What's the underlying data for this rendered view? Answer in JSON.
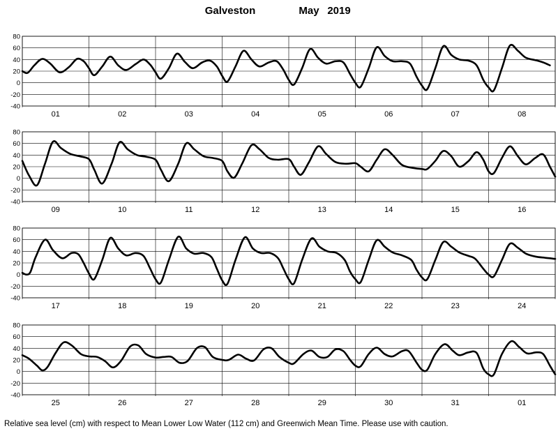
{
  "chart_data": {
    "type": "line",
    "title": "Galveston",
    "subtitle": "May",
    "year": "2019",
    "footnote": "Relative sea level (cm) with respect to Mean Lower Low Water (112 cm) and Greenwich Mean Time. Please use with caution.",
    "ylim": [
      -40,
      80
    ],
    "yticks": [
      80,
      60,
      40,
      20,
      0,
      -20,
      -40
    ],
    "grid": true,
    "line_color": "#000000",
    "panels": [
      {
        "days": [
          "01",
          "02",
          "03",
          "04",
          "05",
          "06",
          "07",
          "08"
        ],
        "points": [
          [
            0,
            20
          ],
          [
            0.08,
            17
          ],
          [
            0.18,
            30
          ],
          [
            0.3,
            41
          ],
          [
            0.42,
            33
          ],
          [
            0.56,
            18
          ],
          [
            0.7,
            27
          ],
          [
            0.82,
            41
          ],
          [
            0.92,
            37
          ],
          [
            1.0,
            25
          ],
          [
            1.08,
            13
          ],
          [
            1.2,
            28
          ],
          [
            1.32,
            45
          ],
          [
            1.44,
            30
          ],
          [
            1.56,
            22
          ],
          [
            1.7,
            32
          ],
          [
            1.82,
            40
          ],
          [
            1.92,
            31
          ],
          [
            2.0,
            18
          ],
          [
            2.08,
            7
          ],
          [
            2.2,
            25
          ],
          [
            2.32,
            50
          ],
          [
            2.44,
            36
          ],
          [
            2.56,
            25
          ],
          [
            2.7,
            35
          ],
          [
            2.82,
            38
          ],
          [
            2.92,
            28
          ],
          [
            3.0,
            12
          ],
          [
            3.08,
            2
          ],
          [
            3.2,
            28
          ],
          [
            3.32,
            55
          ],
          [
            3.44,
            40
          ],
          [
            3.56,
            28
          ],
          [
            3.7,
            35
          ],
          [
            3.82,
            37
          ],
          [
            3.92,
            22
          ],
          [
            4.0,
            5
          ],
          [
            4.08,
            -3
          ],
          [
            4.2,
            25
          ],
          [
            4.32,
            58
          ],
          [
            4.44,
            43
          ],
          [
            4.56,
            33
          ],
          [
            4.7,
            37
          ],
          [
            4.82,
            35
          ],
          [
            4.92,
            15
          ],
          [
            5.0,
            0
          ],
          [
            5.08,
            -7
          ],
          [
            5.2,
            25
          ],
          [
            5.32,
            61
          ],
          [
            5.44,
            46
          ],
          [
            5.56,
            37
          ],
          [
            5.7,
            37
          ],
          [
            5.82,
            33
          ],
          [
            5.92,
            10
          ],
          [
            6.0,
            -5
          ],
          [
            6.08,
            -11
          ],
          [
            6.2,
            25
          ],
          [
            6.32,
            63
          ],
          [
            6.44,
            48
          ],
          [
            6.56,
            40
          ],
          [
            6.7,
            38
          ],
          [
            6.82,
            30
          ],
          [
            6.92,
            5
          ],
          [
            7.0,
            -8
          ],
          [
            7.08,
            -13
          ],
          [
            7.2,
            25
          ],
          [
            7.32,
            64
          ],
          [
            7.44,
            55
          ],
          [
            7.56,
            43
          ],
          [
            7.7,
            39
          ],
          [
            7.82,
            35
          ],
          [
            7.92,
            30
          ]
        ]
      },
      {
        "days": [
          "09",
          "10",
          "11",
          "12",
          "13",
          "14",
          "15",
          "16"
        ],
        "points": [
          [
            0,
            30
          ],
          [
            0.1,
            5
          ],
          [
            0.22,
            -12
          ],
          [
            0.34,
            25
          ],
          [
            0.46,
            63
          ],
          [
            0.58,
            52
          ],
          [
            0.72,
            42
          ],
          [
            0.86,
            38
          ],
          [
            1.0,
            33
          ],
          [
            1.08,
            15
          ],
          [
            1.2,
            -9
          ],
          [
            1.34,
            25
          ],
          [
            1.46,
            62
          ],
          [
            1.58,
            50
          ],
          [
            1.72,
            40
          ],
          [
            1.86,
            37
          ],
          [
            2.0,
            32
          ],
          [
            2.08,
            15
          ],
          [
            2.2,
            -5
          ],
          [
            2.34,
            25
          ],
          [
            2.46,
            60
          ],
          [
            2.58,
            50
          ],
          [
            2.72,
            38
          ],
          [
            2.86,
            35
          ],
          [
            3.0,
            30
          ],
          [
            3.08,
            12
          ],
          [
            3.18,
            1
          ],
          [
            3.3,
            25
          ],
          [
            3.44,
            57
          ],
          [
            3.56,
            50
          ],
          [
            3.7,
            35
          ],
          [
            3.84,
            32
          ],
          [
            4.0,
            33
          ],
          [
            4.08,
            20
          ],
          [
            4.18,
            6
          ],
          [
            4.3,
            27
          ],
          [
            4.44,
            55
          ],
          [
            4.56,
            42
          ],
          [
            4.7,
            28
          ],
          [
            4.86,
            25
          ],
          [
            5.0,
            26
          ],
          [
            5.08,
            20
          ],
          [
            5.2,
            12
          ],
          [
            5.32,
            32
          ],
          [
            5.44,
            50
          ],
          [
            5.56,
            40
          ],
          [
            5.7,
            23
          ],
          [
            5.86,
            18
          ],
          [
            6.0,
            16
          ],
          [
            6.08,
            16
          ],
          [
            6.2,
            30
          ],
          [
            6.32,
            47
          ],
          [
            6.44,
            38
          ],
          [
            6.56,
            20
          ],
          [
            6.7,
            30
          ],
          [
            6.82,
            45
          ],
          [
            6.92,
            32
          ],
          [
            7.0,
            12
          ],
          [
            7.08,
            9
          ],
          [
            7.2,
            35
          ],
          [
            7.32,
            55
          ],
          [
            7.44,
            38
          ],
          [
            7.56,
            24
          ],
          [
            7.7,
            35
          ],
          [
            7.82,
            41
          ],
          [
            7.92,
            20
          ],
          [
            8.0,
            3
          ]
        ]
      },
      {
        "days": [
          "17",
          "18",
          "19",
          "20",
          "21",
          "22",
          "23",
          "24"
        ],
        "points": [
          [
            0,
            3
          ],
          [
            0.06,
            0
          ],
          [
            0.12,
            4
          ],
          [
            0.2,
            30
          ],
          [
            0.34,
            60
          ],
          [
            0.46,
            42
          ],
          [
            0.6,
            28
          ],
          [
            0.74,
            37
          ],
          [
            0.84,
            35
          ],
          [
            0.92,
            20
          ],
          [
            1.0,
            2
          ],
          [
            1.08,
            -8
          ],
          [
            1.2,
            25
          ],
          [
            1.32,
            63
          ],
          [
            1.44,
            45
          ],
          [
            1.56,
            33
          ],
          [
            1.7,
            37
          ],
          [
            1.82,
            32
          ],
          [
            1.92,
            10
          ],
          [
            2.0,
            -8
          ],
          [
            2.08,
            -14
          ],
          [
            2.2,
            25
          ],
          [
            2.34,
            65
          ],
          [
            2.46,
            45
          ],
          [
            2.58,
            36
          ],
          [
            2.72,
            37
          ],
          [
            2.84,
            30
          ],
          [
            2.92,
            10
          ],
          [
            3.0,
            -10
          ],
          [
            3.08,
            -16
          ],
          [
            3.2,
            25
          ],
          [
            3.34,
            64
          ],
          [
            3.46,
            45
          ],
          [
            3.58,
            37
          ],
          [
            3.72,
            37
          ],
          [
            3.84,
            28
          ],
          [
            3.92,
            10
          ],
          [
            4.0,
            -8
          ],
          [
            4.08,
            -15
          ],
          [
            4.2,
            25
          ],
          [
            4.34,
            62
          ],
          [
            4.46,
            48
          ],
          [
            4.58,
            40
          ],
          [
            4.72,
            37
          ],
          [
            4.84,
            25
          ],
          [
            4.92,
            5
          ],
          [
            5.0,
            -8
          ],
          [
            5.08,
            -13
          ],
          [
            5.2,
            25
          ],
          [
            5.32,
            59
          ],
          [
            5.44,
            48
          ],
          [
            5.56,
            38
          ],
          [
            5.7,
            33
          ],
          [
            5.84,
            25
          ],
          [
            5.92,
            8
          ],
          [
            6.0,
            -5
          ],
          [
            6.08,
            -8
          ],
          [
            6.2,
            25
          ],
          [
            6.32,
            56
          ],
          [
            6.44,
            48
          ],
          [
            6.56,
            38
          ],
          [
            6.7,
            32
          ],
          [
            6.8,
            27
          ],
          [
            6.92,
            10
          ],
          [
            7.0,
            0
          ],
          [
            7.08,
            -3
          ],
          [
            7.2,
            25
          ],
          [
            7.32,
            53
          ],
          [
            7.44,
            46
          ],
          [
            7.56,
            36
          ],
          [
            7.7,
            31
          ],
          [
            7.84,
            29
          ],
          [
            7.92,
            28
          ],
          [
            8.0,
            27
          ]
        ]
      },
      {
        "days": [
          "25",
          "26",
          "27",
          "28",
          "29",
          "30",
          "31",
          "01"
        ],
        "points": [
          [
            0,
            28
          ],
          [
            0.1,
            22
          ],
          [
            0.22,
            10
          ],
          [
            0.3,
            2
          ],
          [
            0.38,
            8
          ],
          [
            0.5,
            32
          ],
          [
            0.62,
            50
          ],
          [
            0.74,
            45
          ],
          [
            0.88,
            30
          ],
          [
            1.0,
            26
          ],
          [
            1.12,
            25
          ],
          [
            1.24,
            18
          ],
          [
            1.36,
            7
          ],
          [
            1.48,
            18
          ],
          [
            1.62,
            43
          ],
          [
            1.74,
            45
          ],
          [
            1.86,
            30
          ],
          [
            2.0,
            24
          ],
          [
            2.12,
            25
          ],
          [
            2.24,
            25
          ],
          [
            2.36,
            15
          ],
          [
            2.48,
            18
          ],
          [
            2.62,
            40
          ],
          [
            2.74,
            42
          ],
          [
            2.86,
            25
          ],
          [
            3.0,
            20
          ],
          [
            3.1,
            20
          ],
          [
            3.24,
            29
          ],
          [
            3.36,
            22
          ],
          [
            3.48,
            19
          ],
          [
            3.62,
            38
          ],
          [
            3.74,
            40
          ],
          [
            3.86,
            25
          ],
          [
            4.0,
            15
          ],
          [
            4.08,
            14
          ],
          [
            4.22,
            30
          ],
          [
            4.34,
            36
          ],
          [
            4.46,
            25
          ],
          [
            4.58,
            25
          ],
          [
            4.7,
            38
          ],
          [
            4.82,
            35
          ],
          [
            4.92,
            20
          ],
          [
            5.0,
            10
          ],
          [
            5.08,
            9
          ],
          [
            5.2,
            30
          ],
          [
            5.32,
            41
          ],
          [
            5.44,
            30
          ],
          [
            5.56,
            26
          ],
          [
            5.7,
            35
          ],
          [
            5.8,
            35
          ],
          [
            5.92,
            15
          ],
          [
            6.0,
            3
          ],
          [
            6.08,
            3
          ],
          [
            6.2,
            30
          ],
          [
            6.34,
            47
          ],
          [
            6.46,
            36
          ],
          [
            6.56,
            28
          ],
          [
            6.7,
            33
          ],
          [
            6.82,
            32
          ],
          [
            6.92,
            5
          ],
          [
            7.0,
            -5
          ],
          [
            7.08,
            -5
          ],
          [
            7.2,
            30
          ],
          [
            7.34,
            52
          ],
          [
            7.46,
            42
          ],
          [
            7.58,
            31
          ],
          [
            7.72,
            33
          ],
          [
            7.82,
            30
          ],
          [
            7.92,
            10
          ],
          [
            8.0,
            -5
          ]
        ]
      }
    ]
  }
}
